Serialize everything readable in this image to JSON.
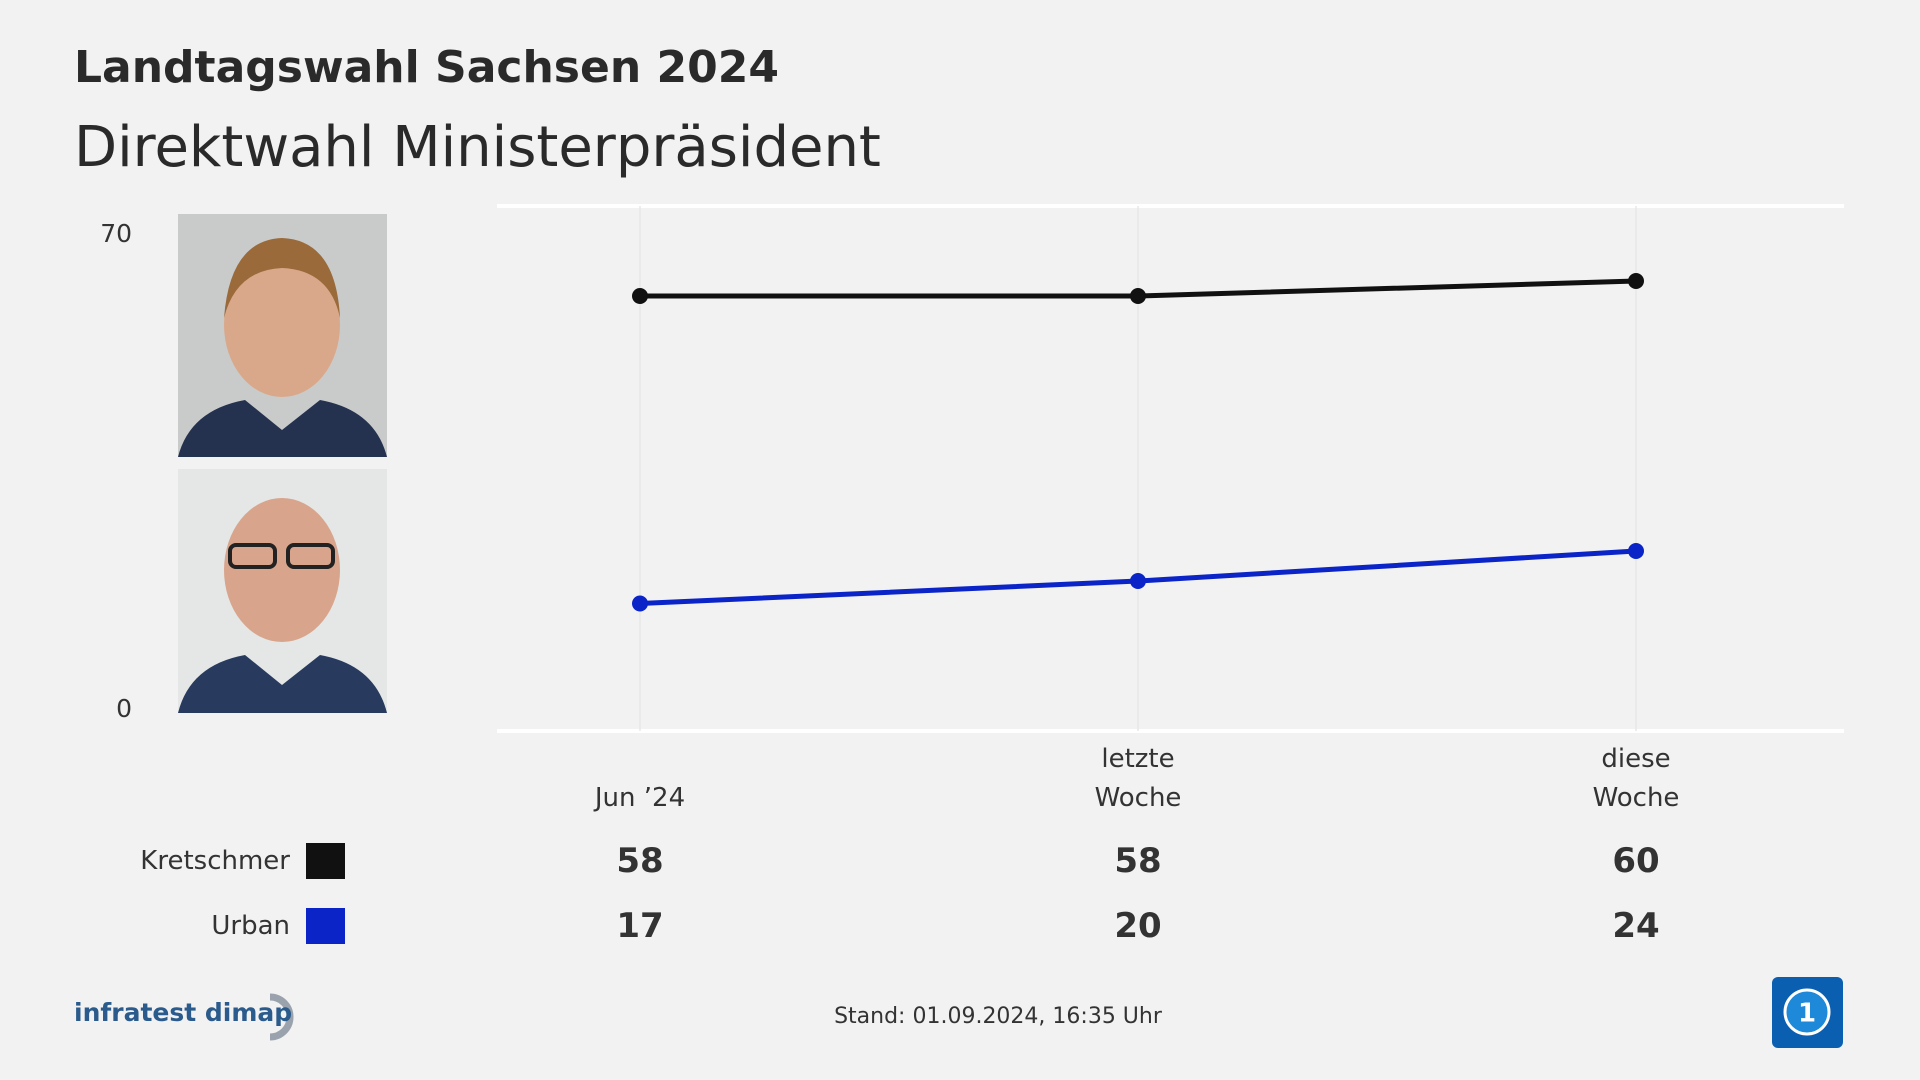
{
  "chart_data": {
    "type": "line",
    "title": "Landtagswahl Sachsen 2024",
    "subtitle": "Direktwahl Ministerpräsident",
    "categories": [
      "Jun ’24",
      "letzte Woche",
      "diese Woche"
    ],
    "series": [
      {
        "name": "Kretschmer",
        "color": "#111111",
        "values": [
          58,
          58,
          60
        ]
      },
      {
        "name": "Urban",
        "color": "#0a24c8",
        "values": [
          17,
          20,
          24
        ]
      }
    ],
    "ylim": [
      0,
      70
    ],
    "yticks": [
      0,
      70
    ],
    "grid": true,
    "source": "infratest dimap",
    "footnote": "Stand:  01.09.2024, 16:35 Uhr"
  }
}
